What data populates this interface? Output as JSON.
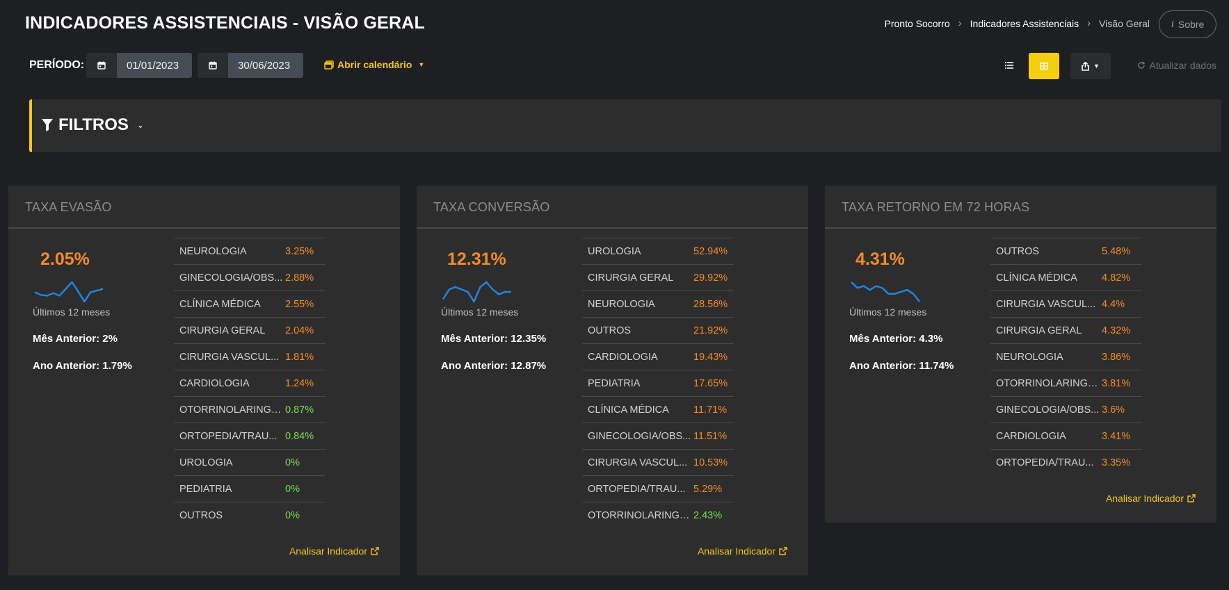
{
  "header": {
    "title": "INDICADORES ASSISTENCIAIS - VISÃO GERAL",
    "breadcrumb": [
      "Pronto Socorro",
      "Indicadores Assistenciais",
      "Visão Geral"
    ],
    "about_label": "Sobre"
  },
  "toolbar": {
    "period_label": "PERÍODO:",
    "start_date": "01/01/2023",
    "end_date": "30/06/2023",
    "open_calendar_label": "Abrir calendário",
    "refresh_label": "Atualizar dados",
    "active_view": "grid"
  },
  "filters": {
    "label": "FILTROS"
  },
  "colors": {
    "accent": "#f5c518",
    "warning": "#f28c28",
    "good": "#7ed957",
    "spark": "#1e88e5"
  },
  "cards": [
    {
      "title": "TAXA EVASÃO",
      "value": "2.05%",
      "period_caption": "Últimos 12 meses",
      "prev_month": "Mês Anterior: 2%",
      "prev_year": "Ano Anterior: 1.79%",
      "sparkline": [
        2.0,
        1.85,
        1.8,
        1.95,
        1.8,
        2.2,
        2.6,
        2.05,
        1.45,
        2.0,
        2.1,
        2.2
      ],
      "rows": [
        {
          "name": "NEUROLOGIA",
          "value": "3.25%",
          "status": "orange"
        },
        {
          "name": "GINECOLOGIA/OBS...",
          "value": "2.88%",
          "status": "orange"
        },
        {
          "name": "CLÍNICA MÉDICA",
          "value": "2.55%",
          "status": "orange"
        },
        {
          "name": "CIRURGIA GERAL",
          "value": "2.04%",
          "status": "orange"
        },
        {
          "name": "CIRURGIA VASCUL...",
          "value": "1.81%",
          "status": "orange"
        },
        {
          "name": "CARDIOLOGIA",
          "value": "1.24%",
          "status": "orange"
        },
        {
          "name": "OTORRINOLARINGO...",
          "value": "0.87%",
          "status": "green"
        },
        {
          "name": "ORTOPEDIA/TRAU...",
          "value": "0.84%",
          "status": "green"
        },
        {
          "name": "UROLOGIA",
          "value": "0%",
          "status": "green"
        },
        {
          "name": "PEDIATRIA",
          "value": "0%",
          "status": "green"
        },
        {
          "name": "OUTROS",
          "value": "0%",
          "status": "green"
        }
      ],
      "analyze_label": "Analisar Indicador"
    },
    {
      "title": "TAXA CONVERSÃO",
      "value": "12.31%",
      "period_caption": "Últimos 12 meses",
      "prev_month": "Mês Anterior: 12.35%",
      "prev_year": "Ano Anterior: 12.87%",
      "sparkline": [
        12.2,
        12.4,
        12.45,
        12.4,
        12.35,
        12.15,
        12.45,
        12.55,
        12.4,
        12.3,
        12.35,
        12.35
      ],
      "rows": [
        {
          "name": "UROLOGIA",
          "value": "52.94%",
          "status": "orange"
        },
        {
          "name": "CIRURGIA GERAL",
          "value": "29.92%",
          "status": "orange"
        },
        {
          "name": "NEUROLOGIA",
          "value": "28.56%",
          "status": "orange"
        },
        {
          "name": "OUTROS",
          "value": "21.92%",
          "status": "orange"
        },
        {
          "name": "CARDIOLOGIA",
          "value": "19.43%",
          "status": "orange"
        },
        {
          "name": "PEDIATRIA",
          "value": "17.65%",
          "status": "orange"
        },
        {
          "name": "CLÍNICA MÉDICA",
          "value": "11.71%",
          "status": "orange"
        },
        {
          "name": "GINECOLOGIA/OBS...",
          "value": "11.51%",
          "status": "orange"
        },
        {
          "name": "CIRURGIA VASCUL...",
          "value": "10.53%",
          "status": "orange"
        },
        {
          "name": "ORTOPEDIA/TRAU...",
          "value": "5.29%",
          "status": "orange"
        },
        {
          "name": "OTORRINOLARINGO...",
          "value": "2.43%",
          "status": "green"
        }
      ],
      "analyze_label": "Analisar Indicador"
    },
    {
      "title": "TAXA RETORNO EM 72 HORAS",
      "value": "4.31%",
      "period_caption": "Últimos 12 meses",
      "prev_month": "Mês Anterior: 4.3%",
      "prev_year": "Ano Anterior: 11.74%",
      "sparkline": [
        4.6,
        4.45,
        4.5,
        4.4,
        4.5,
        4.45,
        4.3,
        4.3,
        4.35,
        4.4,
        4.3,
        4.1
      ],
      "rows": [
        {
          "name": "OUTROS",
          "value": "5.48%",
          "status": "orange"
        },
        {
          "name": "CLÍNICA MÉDICA",
          "value": "4.82%",
          "status": "orange"
        },
        {
          "name": "CIRURGIA VASCUL...",
          "value": "4.4%",
          "status": "orange"
        },
        {
          "name": "CIRURGIA GERAL",
          "value": "4.32%",
          "status": "orange"
        },
        {
          "name": "NEUROLOGIA",
          "value": "3.86%",
          "status": "orange"
        },
        {
          "name": "OTORRINOLARINGO...",
          "value": "3.81%",
          "status": "orange"
        },
        {
          "name": "GINECOLOGIA/OBS...",
          "value": "3.6%",
          "status": "orange"
        },
        {
          "name": "CARDIOLOGIA",
          "value": "3.41%",
          "status": "orange"
        },
        {
          "name": "ORTOPEDIA/TRAU...",
          "value": "3.35%",
          "status": "orange"
        }
      ],
      "analyze_label": "Analisar Indicador"
    }
  ]
}
